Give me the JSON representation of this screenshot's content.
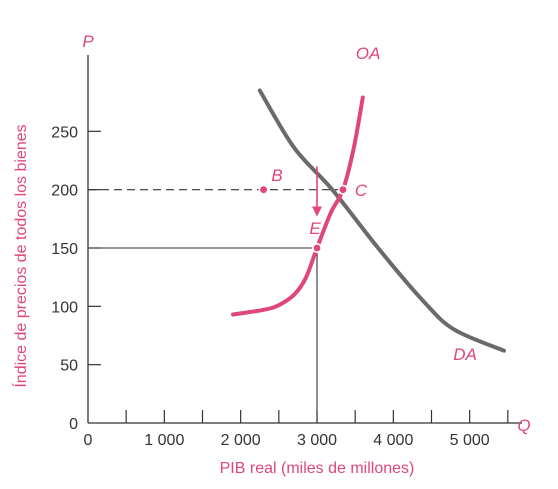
{
  "colors": {
    "accent": "#e0467a",
    "demand": "#6a6a6a",
    "axis": "#333333",
    "text": "#333333"
  },
  "chart_data": {
    "type": "line",
    "xlabel": "PIB real (miles de millones)",
    "ylabel": "Índice de precios de todos los bienes",
    "x_axis_letter": "Q",
    "y_axis_letter": "P",
    "xlim": [
      0,
      5500
    ],
    "ylim": [
      0,
      300
    ],
    "x_ticks": [
      0,
      1000,
      2000,
      3000,
      4000,
      5000
    ],
    "x_tick_labels": [
      "0",
      "1 000",
      "2 000",
      "3 000",
      "4 000",
      "5 000"
    ],
    "y_ticks": [
      0,
      50,
      100,
      150,
      200,
      250
    ],
    "y_tick_labels": [
      "0",
      "50",
      "100",
      "150",
      "200",
      "250"
    ],
    "series": [
      {
        "name": "OA",
        "color": "#e0467a",
        "points": [
          {
            "x": 1900,
            "y": 93
          },
          {
            "x": 2300,
            "y": 97
          },
          {
            "x": 2500,
            "y": 101
          },
          {
            "x": 2700,
            "y": 110
          },
          {
            "x": 2850,
            "y": 124
          },
          {
            "x": 3000,
            "y": 150
          },
          {
            "x": 3180,
            "y": 180
          },
          {
            "x": 3340,
            "y": 200
          },
          {
            "x": 3480,
            "y": 235
          },
          {
            "x": 3600,
            "y": 279
          }
        ]
      },
      {
        "name": "DA",
        "color": "#6a6a6a",
        "points": [
          {
            "x": 2250,
            "y": 285
          },
          {
            "x": 2700,
            "y": 236
          },
          {
            "x": 3200,
            "y": 200
          },
          {
            "x": 3800,
            "y": 150
          },
          {
            "x": 4400,
            "y": 104
          },
          {
            "x": 4800,
            "y": 80
          },
          {
            "x": 5450,
            "y": 62
          }
        ]
      }
    ],
    "points": [
      {
        "label": "B",
        "x": 2300,
        "y": 200
      },
      {
        "label": "C",
        "x": 3340,
        "y": 200
      },
      {
        "label": "E",
        "x": 3000,
        "y": 150
      }
    ],
    "guides": [
      {
        "from": {
          "x": 0,
          "y": 200
        },
        "to": {
          "x": 3340,
          "y": 200
        },
        "style": "dashed"
      },
      {
        "from": {
          "x": 0,
          "y": 150
        },
        "to": {
          "x": 3000,
          "y": 150
        },
        "style": "solid"
      },
      {
        "from": {
          "x": 3000,
          "y": 0
        },
        "to": {
          "x": 3000,
          "y": 150
        },
        "style": "solid"
      }
    ],
    "arrow": {
      "from": {
        "x": 3000,
        "y": 220
      },
      "to": {
        "x": 3000,
        "y": 177
      }
    },
    "grid": false,
    "legend": "none"
  }
}
